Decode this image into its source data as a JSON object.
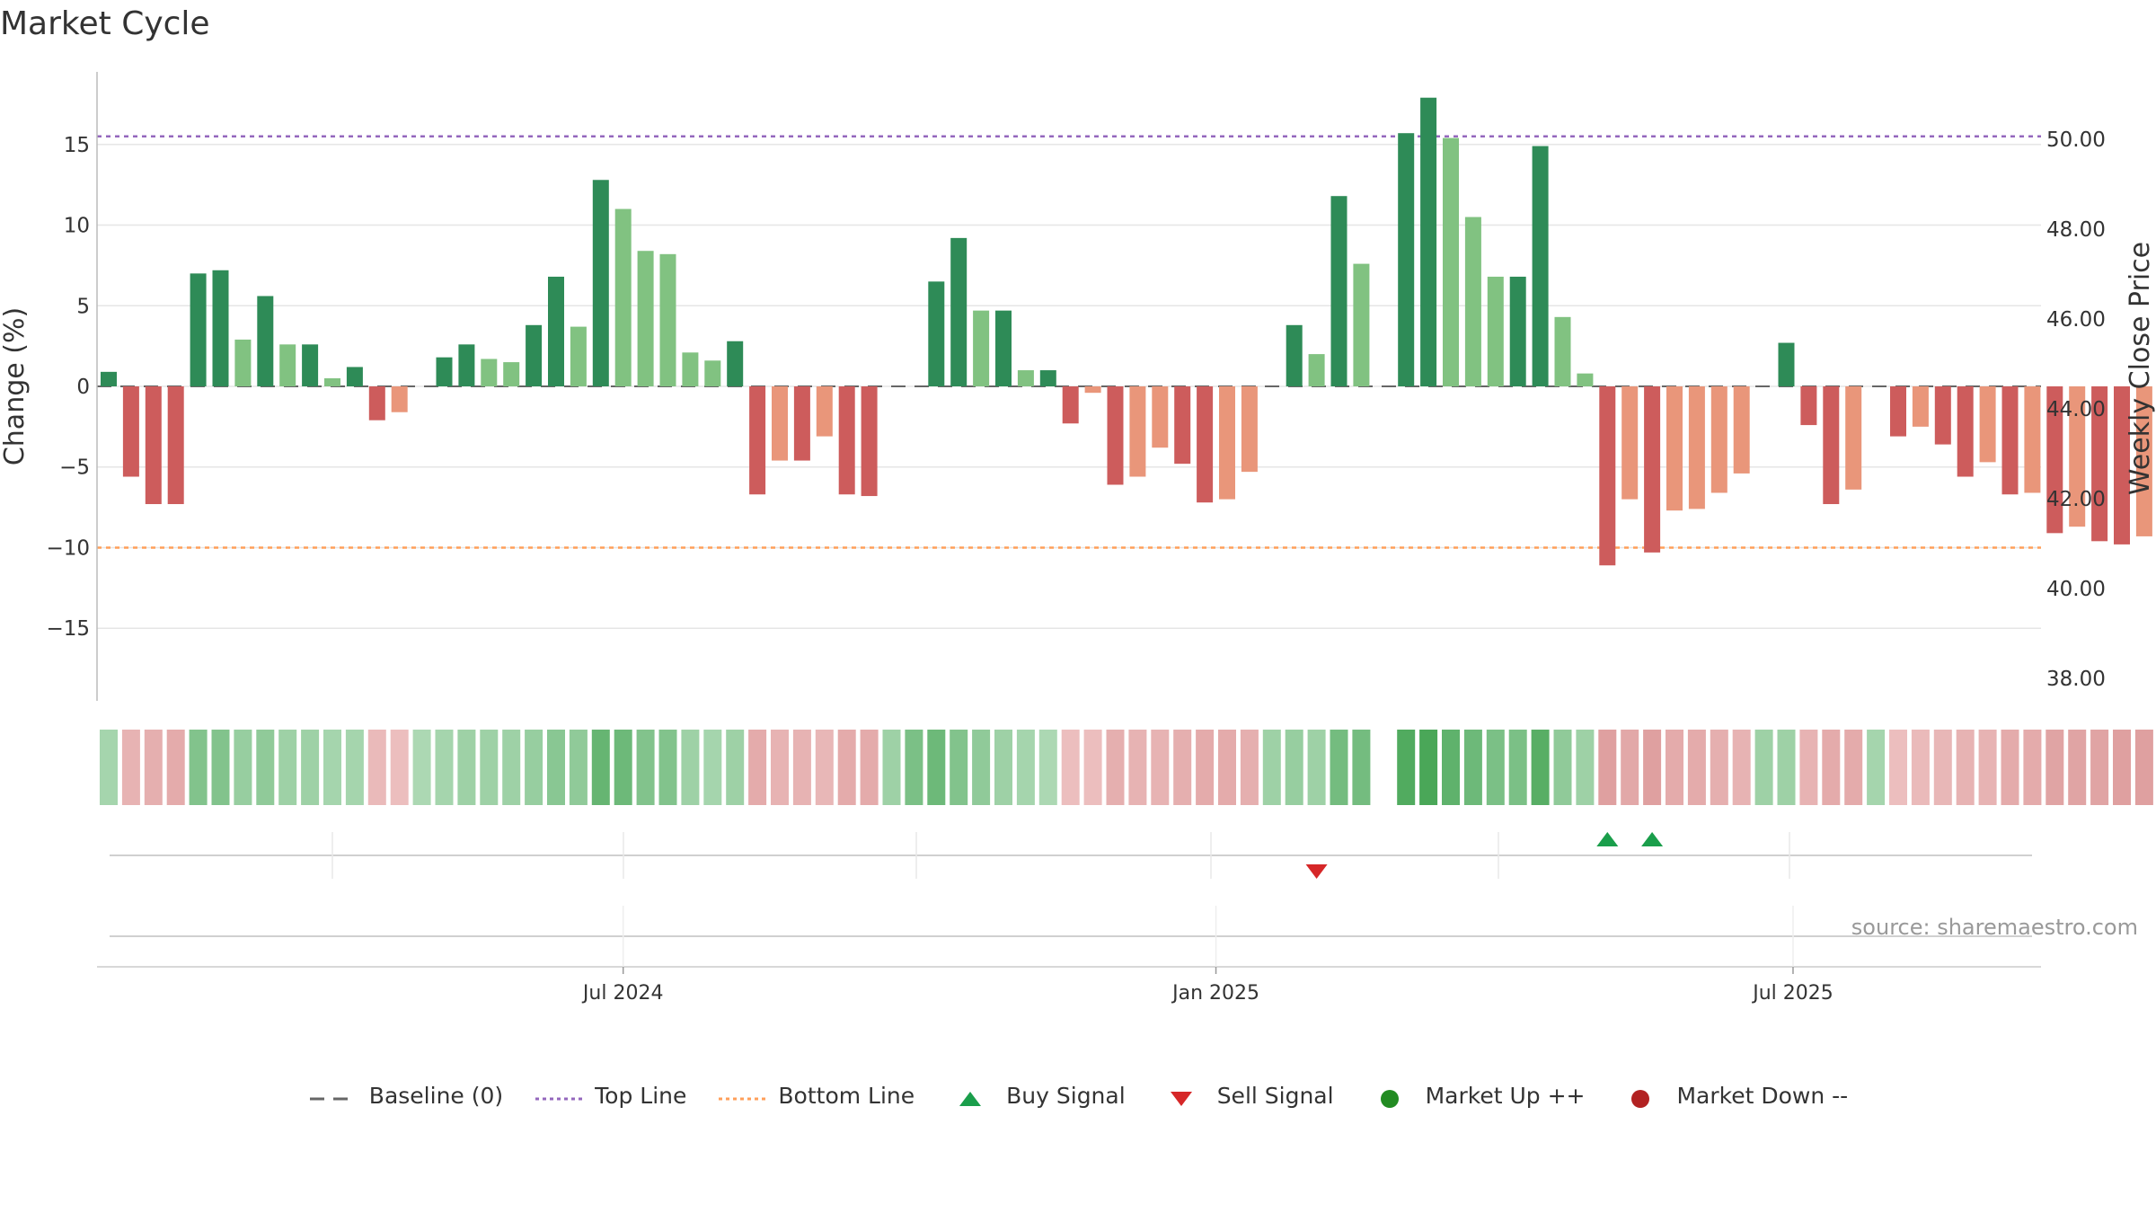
{
  "title": "Market Cycle",
  "source": "source: sharemaestro.com",
  "colors": {
    "up_strong": "#2e8b57",
    "up_light": "#81c281",
    "down_strong": "#cd5c5c",
    "down_light": "#e9967a",
    "top_line": "#9467bd",
    "bottom_line": "#ff9f5a",
    "buy": "#1a9e4b",
    "sell": "#d62728",
    "market_up": "#228b22",
    "market_down": "#b22222"
  },
  "legend": [
    {
      "key": "baseline",
      "label": "Baseline (0)"
    },
    {
      "key": "top",
      "label": "Top Line"
    },
    {
      "key": "bottom",
      "label": "Bottom Line"
    },
    {
      "key": "buy",
      "label": "Buy Signal"
    },
    {
      "key": "sell",
      "label": "Sell Signal"
    },
    {
      "key": "mup",
      "label": "Market Up ++"
    },
    {
      "key": "mdown",
      "label": "Market Down --"
    }
  ],
  "chart_data": {
    "type": "bar",
    "title": "Market Cycle",
    "ylabel": "Change (%)",
    "y2label": "Weekly Close Price",
    "ylim": [
      -19.5,
      19.5
    ],
    "y2lim": [
      37.5,
      51.5
    ],
    "yticks": [
      15,
      10,
      5,
      0,
      -5,
      -10,
      -15
    ],
    "ytick_labels": [
      "15",
      "10",
      "5",
      "0",
      "−5",
      "−10",
      "−15"
    ],
    "y2ticks": [
      50,
      48,
      46,
      44,
      42,
      40,
      38
    ],
    "y2tick_labels": [
      "50.00",
      "48.00",
      "46.00",
      "44.00",
      "42.00",
      "40.00",
      "38.00"
    ],
    "top_line": 15.5,
    "bottom_line": -10,
    "x_month_labels": [
      {
        "index": 23,
        "label": "Jul 2024"
      },
      {
        "index": 49.5,
        "label": "Jan 2025"
      },
      {
        "index": 75.3,
        "label": "Jul 2025"
      }
    ],
    "values": [
      0.9,
      -5.6,
      -7.3,
      -7.3,
      7.0,
      7.2,
      2.9,
      5.6,
      2.6,
      2.6,
      0.5,
      1.2,
      -2.1,
      -1.6,
      0,
      1.8,
      2.6,
      1.7,
      1.5,
      3.8,
      6.8,
      3.7,
      12.8,
      11.0,
      8.4,
      8.2,
      2.1,
      1.6,
      2.8,
      -6.7,
      -4.6,
      -4.6,
      -3.1,
      -6.7,
      -6.8,
      0,
      0,
      6.5,
      9.2,
      4.7,
      4.7,
      1.0,
      1.0,
      -2.3,
      -0.4,
      -6.1,
      -5.6,
      -3.8,
      -4.8,
      -7.2,
      -7.0,
      -5.3,
      0,
      3.8,
      2.0,
      11.8,
      7.6,
      0,
      15.7,
      17.9,
      15.4,
      10.5,
      6.8,
      6.8,
      14.9,
      4.3,
      0.8,
      -11.1,
      -7.0,
      -10.3,
      -7.7,
      -7.6,
      -6.6,
      -5.4,
      0,
      2.7,
      -2.4,
      -7.3,
      -6.4,
      0,
      -3.1,
      -2.5,
      -3.6,
      -5.6,
      -4.7,
      -6.7,
      -6.6,
      -9.1,
      -8.7,
      -9.6,
      -9.8,
      -9.3
    ],
    "bar_shade": [
      "S",
      "S",
      "S",
      "S",
      "S",
      "S",
      "L",
      "S",
      "L",
      "S",
      "L",
      "S",
      "S",
      "L",
      "S",
      "S",
      "S",
      "L",
      "L",
      "S",
      "S",
      "L",
      "S",
      "L",
      "L",
      "L",
      "L",
      "L",
      "S",
      "S",
      "L",
      "S",
      "L",
      "S",
      "S",
      "L",
      "L",
      "S",
      "S",
      "L",
      "S",
      "L",
      "S",
      "S",
      "L",
      "S",
      "L",
      "L",
      "S",
      "S",
      "L",
      "L",
      "L",
      "S",
      "L",
      "S",
      "L",
      "L",
      "S",
      "S",
      "L",
      "L",
      "L",
      "S",
      "S",
      "L",
      "L",
      "S",
      "L",
      "S",
      "L",
      "L",
      "L",
      "L",
      "L",
      "S",
      "S",
      "S",
      "L",
      "L",
      "S",
      "L",
      "S",
      "S",
      "L",
      "S",
      "L",
      "S",
      "L",
      "S",
      "S",
      "L"
    ],
    "heatmap": [
      0.25,
      -0.35,
      -0.4,
      -0.45,
      0.5,
      0.5,
      0.35,
      0.4,
      0.3,
      0.3,
      0.25,
      0.25,
      -0.25,
      -0.2,
      0.2,
      0.25,
      0.3,
      0.3,
      0.3,
      0.35,
      0.45,
      0.4,
      0.7,
      0.65,
      0.5,
      0.5,
      0.3,
      0.25,
      0.3,
      -0.45,
      -0.35,
      -0.35,
      -0.3,
      -0.45,
      -0.45,
      0.3,
      0.55,
      0.65,
      0.5,
      0.4,
      0.3,
      0.25,
      0.2,
      -0.2,
      -0.2,
      -0.4,
      -0.35,
      -0.35,
      -0.4,
      -0.45,
      -0.45,
      -0.4,
      0.3,
      0.35,
      0.3,
      0.6,
      0.6,
      null,
      0.85,
      0.9,
      0.75,
      0.65,
      0.55,
      0.55,
      0.8,
      0.4,
      0.3,
      -0.6,
      -0.5,
      -0.6,
      -0.45,
      -0.45,
      -0.4,
      -0.35,
      0.3,
      0.3,
      -0.35,
      -0.45,
      -0.45,
      0.25,
      -0.2,
      -0.25,
      -0.3,
      -0.35,
      -0.35,
      -0.45,
      -0.45,
      -0.55,
      -0.55,
      -0.55,
      -0.6,
      -0.6
    ],
    "buy_signals": [
      67,
      69
    ],
    "sell_signals": [
      54
    ]
  }
}
